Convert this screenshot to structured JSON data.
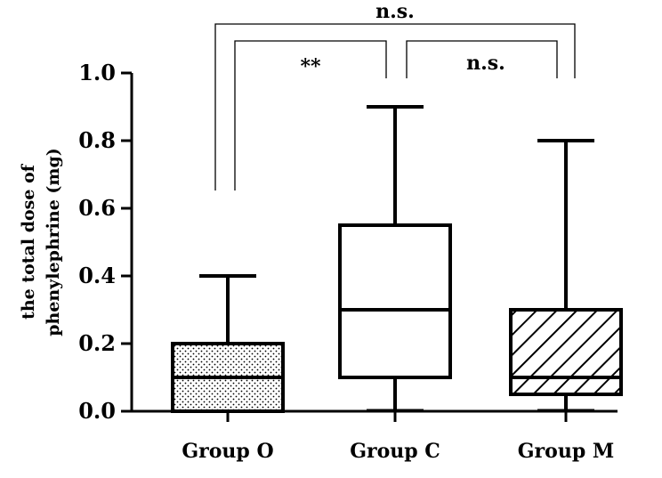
{
  "chart_data": {
    "type": "boxplot",
    "ylabel_lines": [
      "the total dose of",
      "phenylephrine (mg)"
    ],
    "ylim": [
      0,
      1.0
    ],
    "yticks": [
      "0.0",
      "0.2",
      "0.4",
      "0.6",
      "0.8",
      "1.0"
    ],
    "categories": [
      "Group O",
      "Group C",
      "Group M"
    ],
    "boxes": [
      {
        "name": "Group O",
        "min": 0.0,
        "q1": 0.0,
        "median": 0.1,
        "q3": 0.2,
        "max": 0.4,
        "pattern": "dots"
      },
      {
        "name": "Group C",
        "min": 0.0,
        "q1": 0.1,
        "median": 0.3,
        "q3": 0.55,
        "max": 0.9,
        "pattern": "none"
      },
      {
        "name": "Group M",
        "min": 0.0,
        "q1": 0.05,
        "median": 0.1,
        "q3": 0.3,
        "max": 0.8,
        "pattern": "hatch"
      }
    ],
    "comparisons": [
      {
        "from": 0,
        "to": 1,
        "label": "**"
      },
      {
        "from": 1,
        "to": 2,
        "label": "n.s."
      },
      {
        "from": 0,
        "to": 2,
        "label": "n.s."
      }
    ],
    "grid": false,
    "legend": "none"
  }
}
